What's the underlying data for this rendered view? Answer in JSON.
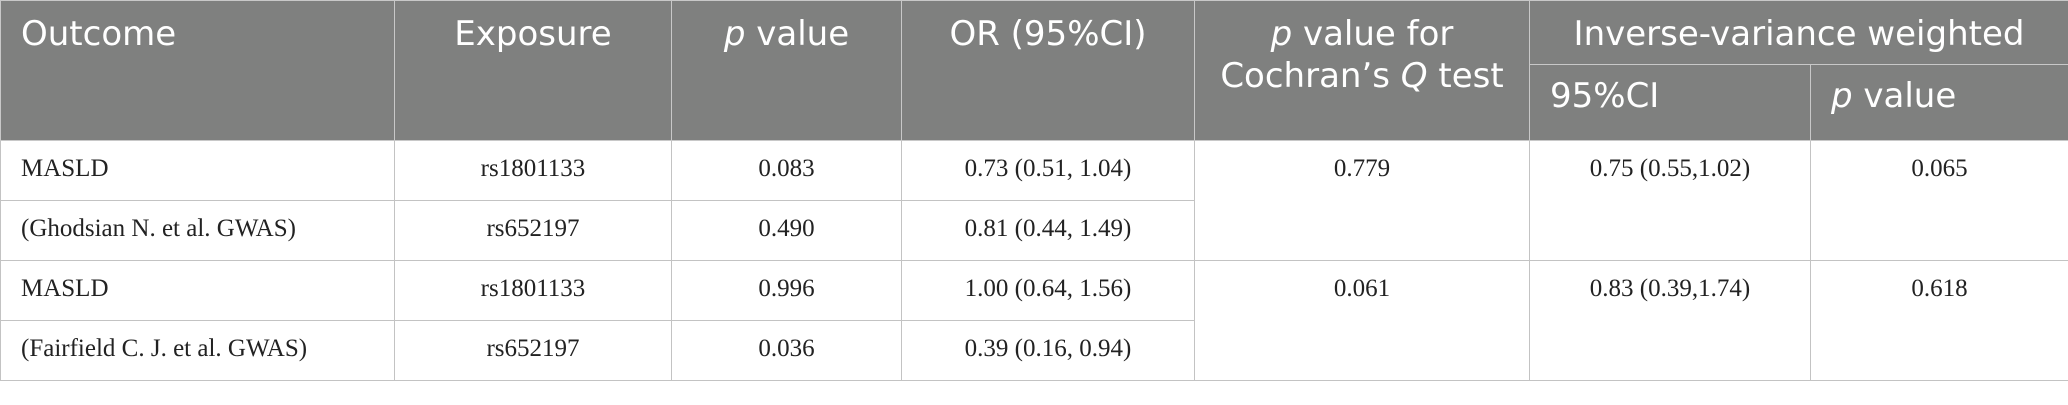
{
  "header": {
    "outcome": "Outcome",
    "exposure": "Exposure",
    "p_value_italic": "p",
    "p_value_rest": " value",
    "or_ci": "OR (95%CI)",
    "cochran_p_italic": "p",
    "cochran_line1_rest": " value for",
    "cochran_line2_pre": "Cochran’s ",
    "cochran_q_italic": "Q",
    "cochran_line2_post": " test",
    "ivw_group": "Inverse-variance weighted",
    "ivw_ci": "95%CI",
    "ivw_p_italic": "p",
    "ivw_p_rest": " value"
  },
  "groups": [
    {
      "rows": [
        {
          "outcome": "MASLD",
          "exposure": "rs1801133",
          "p_value": "0.083",
          "or_ci": "0.73 (0.51, 1.04)"
        },
        {
          "outcome": "(Ghodsian N. et al. GWAS)",
          "exposure": "rs652197",
          "p_value": "0.490",
          "or_ci": "0.81 (0.44, 1.49)"
        }
      ],
      "cochran_p": "0.779",
      "ivw_ci": "0.75 (0.55,1.02)",
      "ivw_p": "0.065"
    },
    {
      "rows": [
        {
          "outcome": "MASLD",
          "exposure": "rs1801133",
          "p_value": "0.996",
          "or_ci": "1.00 (0.64, 1.56)"
        },
        {
          "outcome": "(Fairfield C. J. et al. GWAS)",
          "exposure": "rs652197",
          "p_value": "0.036",
          "or_ci": "0.39 (0.16, 0.94)"
        }
      ],
      "cochran_p": "0.061",
      "ivw_ci": "0.83 (0.39,1.74)",
      "ivw_p": "0.618"
    }
  ]
}
